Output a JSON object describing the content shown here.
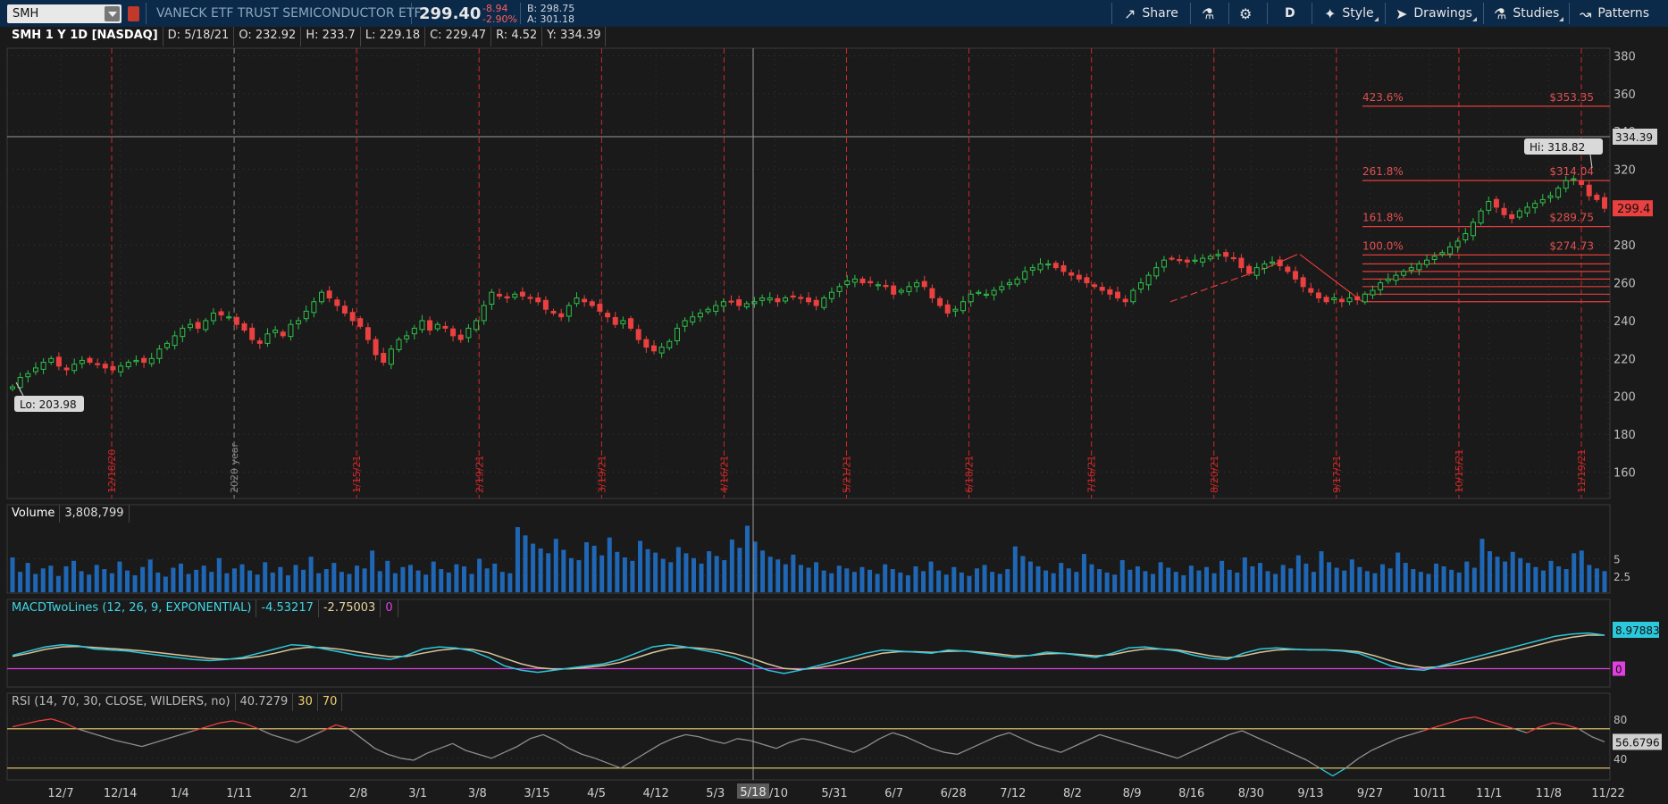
{
  "toolbar": {
    "symbol": "SMH",
    "description": "VANECK ETF TRUST SEMICONDUCTOR ETF",
    "last_price": "299.40",
    "change": "-8.94",
    "change_pct": "-2.90%",
    "bid": "B: 298.75",
    "ask": "A: 301.18",
    "buttons": {
      "share": "Share",
      "aggregation": "D",
      "style": "Style",
      "drawings": "Drawings",
      "studies": "Studies",
      "patterns": "Patterns"
    },
    "colors": {
      "bar": "#0b2948",
      "down": "#ff5f5f"
    }
  },
  "info": {
    "title": "SMH 1 Y 1D [NASDAQ]",
    "date": "D: 5/18/21",
    "open": "O: 232.92",
    "high": "H: 233.7",
    "low": "L: 229.18",
    "close": "C: 229.47",
    "range": "R: 4.52",
    "cursor": "Y: 334.39"
  },
  "volume_header": {
    "label": "Volume",
    "value": "3,808,799"
  },
  "macd_header": {
    "label": "MACDTwoLines (12, 26, 9, EXPONENTIAL)",
    "value1": "-4.53217",
    "value2": "-2.75003",
    "value3": "0"
  },
  "rsi_header": {
    "label": "RSI (14, 70, 30, CLOSE, WILDERS, no)",
    "value": "40.7279",
    "oversold": "30",
    "overbought": "70"
  },
  "chart_data": {
    "type": "candlestick",
    "series": [
      {
        "name": "SMH",
        "start": 205,
        "values": [
          205,
          210,
          212,
          215,
          218,
          220,
          216,
          214,
          217,
          219,
          218,
          217,
          215,
          214,
          216,
          218,
          219,
          218,
          220,
          225,
          228,
          232,
          236,
          238,
          236,
          240,
          244,
          243,
          242,
          238,
          235,
          230,
          228,
          233,
          235,
          232,
          238,
          240,
          245,
          250,
          255,
          252,
          248,
          244,
          240,
          237,
          230,
          222,
          218,
          225,
          230,
          232,
          236,
          240,
          235,
          238,
          236,
          232,
          230,
          236,
          240,
          248,
          255,
          253,
          252,
          254,
          253,
          252,
          250,
          246,
          244,
          242,
          248,
          252,
          250,
          248,
          245,
          242,
          238,
          240,
          236,
          230,
          226,
          224,
          226,
          229,
          236,
          240,
          242,
          244,
          246,
          248,
          250,
          250,
          248,
          249,
          250,
          252,
          252,
          250,
          252,
          253,
          252,
          250,
          248,
          252,
          255,
          258,
          261,
          262,
          260,
          260,
          259,
          258,
          254,
          256,
          258,
          260,
          258,
          252,
          248,
          244,
          246,
          250,
          254,
          255,
          254,
          256,
          258,
          260,
          262,
          266,
          268,
          270,
          270,
          268,
          266,
          264,
          262,
          260,
          258,
          256,
          254,
          252,
          250,
          256,
          260,
          264,
          268,
          272,
          273,
          272,
          271,
          272,
          273,
          274,
          275,
          274,
          273,
          268,
          265,
          268,
          270,
          271,
          269,
          266,
          262,
          258,
          255,
          252,
          250,
          252,
          250,
          252,
          251,
          254,
          256,
          260,
          262,
          264,
          266,
          268,
          270,
          272,
          274,
          276,
          279,
          282,
          286,
          292,
          298,
          303,
          300,
          296,
          294,
          298,
          300,
          302,
          304,
          306,
          310,
          314,
          315,
          312,
          306,
          304,
          299.4
        ]
      }
    ],
    "x_tick_labels": [
      "12/7",
      "12/14",
      "1/4",
      "1/11",
      "2/1",
      "2/8",
      "3/1",
      "3/8",
      "3/15",
      "4/5",
      "4/12",
      "5/3",
      "5/10",
      "5/31",
      "6/7",
      "6/28",
      "7/12",
      "8/2",
      "8/9",
      "8/16",
      "8/30",
      "9/13",
      "9/27",
      "10/11",
      "11/1",
      "11/8",
      "11/22"
    ],
    "y_tick_labels": [
      "160",
      "180",
      "200",
      "220",
      "240",
      "260",
      "280",
      "300",
      "320",
      "340",
      "360",
      "380"
    ],
    "y_range": [
      146,
      384
    ],
    "period_labels": [
      "12/18/20",
      "2020 year",
      "1/15/21",
      "2/19/21",
      "3/19/21",
      "4/16/21",
      "5/21/21",
      "6/18/21",
      "7/16/21",
      "8/20/21",
      "9/17/21",
      "10/15/21",
      "11/19/21"
    ],
    "cursor_date": "5/18",
    "cursor_price": "334.39",
    "last_price_label": "299.4",
    "high_label": "Hi: 318.82",
    "low_label": "Lo: 203.98",
    "fibonacci": [
      {
        "level": "423.6%",
        "price": "$353.35",
        "value": 353.35
      },
      {
        "level": "261.8%",
        "price": "$314.04",
        "value": 314.04
      },
      {
        "level": "161.8%",
        "price": "$289.75",
        "value": 289.75
      },
      {
        "level": "100.0%",
        "price": "$274.73",
        "value": 274.73
      }
    ],
    "volume": {
      "y_tick_labels": [
        "2.5",
        "5"
      ],
      "y_range": [
        0,
        10
      ],
      "values": [
        5.2,
        3.1,
        4.4,
        2.8,
        3.6,
        4.0,
        2.5,
        3.9,
        4.7,
        3.2,
        2.7,
        4.1,
        3.5,
        2.9,
        4.6,
        3.3,
        2.6,
        3.8,
        4.9,
        3.0,
        2.4,
        3.7,
        4.3,
        2.8,
        3.4,
        4.0,
        3.1,
        5.1,
        2.9,
        3.6,
        4.2,
        3.3,
        2.7,
        4.5,
        3.0,
        3.8,
        2.6,
        4.1,
        3.4,
        5.3,
        2.9,
        3.5,
        4.4,
        3.1,
        2.8,
        4.0,
        3.6,
        6.2,
        3.2,
        4.7,
        2.9,
        3.8,
        4.1,
        3.3,
        2.7,
        4.6,
        3.5,
        3.0,
        4.2,
        3.9,
        2.8,
        5.0,
        3.6,
        4.3,
        3.1,
        2.9,
        9.6,
        8.4,
        7.2,
        6.5,
        5.8,
        7.9,
        6.3,
        5.1,
        4.8,
        7.4,
        6.9,
        5.5,
        8.1,
        6.0,
        5.2,
        4.7,
        7.6,
        6.4,
        5.9,
        5.0,
        4.5,
        6.7,
        5.8,
        5.1,
        4.3,
        6.1,
        5.4,
        4.8,
        7.8,
        6.6,
        9.8,
        7.5,
        6.2,
        5.3,
        4.9,
        4.2,
        5.6,
        4.1,
        3.7,
        4.5,
        3.3,
        2.9,
        4.0,
        3.6,
        3.1,
        3.8,
        3.4,
        2.8,
        4.2,
        3.5,
        3.0,
        2.6,
        3.9,
        3.2,
        4.6,
        3.3,
        2.7,
        3.8,
        3.0,
        2.5,
        3.6,
        4.1,
        3.1,
        2.8,
        3.5,
        6.8,
        5.4,
        4.6,
        3.9,
        3.3,
        2.9,
        4.4,
        3.6,
        3.1,
        5.7,
        4.2,
        3.5,
        3.0,
        2.7,
        4.8,
        3.4,
        3.9,
        3.2,
        2.8,
        4.5,
        3.7,
        3.1,
        2.6,
        4.0,
        3.3,
        3.8,
        2.9,
        4.7,
        3.4,
        3.0,
        5.2,
        3.9,
        4.4,
        3.2,
        2.8,
        4.1,
        3.6,
        5.5,
        4.3,
        3.1,
        6.1,
        4.5,
        3.7,
        3.3,
        4.9,
        3.8,
        3.2,
        2.9,
        4.2,
        3.6,
        5.9,
        4.4,
        3.5,
        3.1,
        2.8,
        4.3,
        3.9,
        3.4,
        3.0,
        4.6,
        3.7,
        7.9,
        6.1,
        5.3,
        4.6,
        6.0,
        5.1,
        4.4,
        3.8,
        3.3,
        4.7,
        3.9,
        3.5,
        5.8,
        6.2,
        4.1,
        3.6,
        3.2
      ]
    },
    "macd": {
      "y_range": [
        -1,
        1
      ],
      "last_value": "8.97883",
      "zero_label": "0",
      "macd_values": [
        0.1,
        0.3,
        0.5,
        0.6,
        0.55,
        0.4,
        0.35,
        0.3,
        0.2,
        0.1,
        0.0,
        -0.1,
        -0.15,
        -0.1,
        0.0,
        0.2,
        0.4,
        0.6,
        0.55,
        0.4,
        0.25,
        0.1,
        0.0,
        -0.1,
        0.1,
        0.4,
        0.5,
        0.45,
        0.3,
        0.0,
        -0.4,
        -0.6,
        -0.7,
        -0.6,
        -0.5,
        -0.4,
        -0.3,
        -0.1,
        0.2,
        0.5,
        0.6,
        0.5,
        0.35,
        0.2,
        0.0,
        -0.3,
        -0.6,
        -0.75,
        -0.6,
        -0.4,
        -0.2,
        0.0,
        0.2,
        0.35,
        0.3,
        0.25,
        0.2,
        0.35,
        0.3,
        0.2,
        0.1,
        0.0,
        0.1,
        0.25,
        0.2,
        0.1,
        0.0,
        0.2,
        0.45,
        0.5,
        0.4,
        0.3,
        0.1,
        -0.05,
        -0.1,
        0.2,
        0.4,
        0.45,
        0.4,
        0.35,
        0.35,
        0.3,
        0.2,
        -0.1,
        -0.4,
        -0.55,
        -0.6,
        -0.4,
        -0.2,
        0.0,
        0.2,
        0.4,
        0.6,
        0.8,
        1.0,
        1.1,
        1.15,
        1.05
      ],
      "signal_values": [
        0.05,
        0.2,
        0.38,
        0.5,
        0.52,
        0.47,
        0.42,
        0.37,
        0.3,
        0.22,
        0.13,
        0.04,
        -0.05,
        -0.08,
        -0.05,
        0.05,
        0.2,
        0.38,
        0.48,
        0.46,
        0.38,
        0.26,
        0.14,
        0.04,
        0.05,
        0.2,
        0.34,
        0.42,
        0.38,
        0.22,
        -0.05,
        -0.3,
        -0.48,
        -0.55,
        -0.53,
        -0.47,
        -0.38,
        -0.24,
        -0.02,
        0.23,
        0.42,
        0.48,
        0.43,
        0.33,
        0.18,
        -0.03,
        -0.3,
        -0.52,
        -0.57,
        -0.5,
        -0.36,
        -0.18,
        0.02,
        0.2,
        0.27,
        0.27,
        0.24,
        0.29,
        0.3,
        0.25,
        0.17,
        0.08,
        0.09,
        0.17,
        0.19,
        0.14,
        0.07,
        0.13,
        0.29,
        0.4,
        0.4,
        0.35,
        0.22,
        0.08,
        -0.02,
        0.08,
        0.24,
        0.35,
        0.38,
        0.37,
        0.36,
        0.33,
        0.27,
        0.08,
        -0.16,
        -0.36,
        -0.48,
        -0.44,
        -0.32,
        -0.16,
        0.02,
        0.21,
        0.4,
        0.6,
        0.8,
        0.95,
        1.05,
        1.05
      ]
    },
    "rsi": {
      "y_tick_labels": [
        "40",
        "80"
      ],
      "y_range": [
        18,
        88
      ],
      "last_value": "56.6796",
      "values": [
        72,
        75,
        78,
        80,
        76,
        70,
        66,
        62,
        58,
        55,
        52,
        56,
        60,
        64,
        68,
        72,
        76,
        78,
        75,
        70,
        64,
        60,
        56,
        62,
        68,
        74,
        70,
        60,
        50,
        44,
        40,
        38,
        45,
        50,
        55,
        48,
        44,
        40,
        46,
        52,
        60,
        64,
        58,
        50,
        44,
        40,
        35,
        30,
        38,
        46,
        54,
        60,
        64,
        62,
        58,
        55,
        60,
        58,
        54,
        50,
        56,
        60,
        58,
        54,
        50,
        46,
        52,
        60,
        66,
        62,
        56,
        50,
        46,
        44,
        50,
        56,
        62,
        66,
        60,
        54,
        50,
        46,
        52,
        58,
        64,
        60,
        56,
        52,
        48,
        44,
        40,
        46,
        52,
        58,
        64,
        68,
        62,
        56,
        50,
        44,
        38,
        30,
        22,
        30,
        40,
        48,
        54,
        60,
        64,
        68,
        72,
        76,
        80,
        82,
        78,
        74,
        70,
        66,
        72,
        76,
        74,
        70,
        62,
        56.68
      ]
    }
  }
}
